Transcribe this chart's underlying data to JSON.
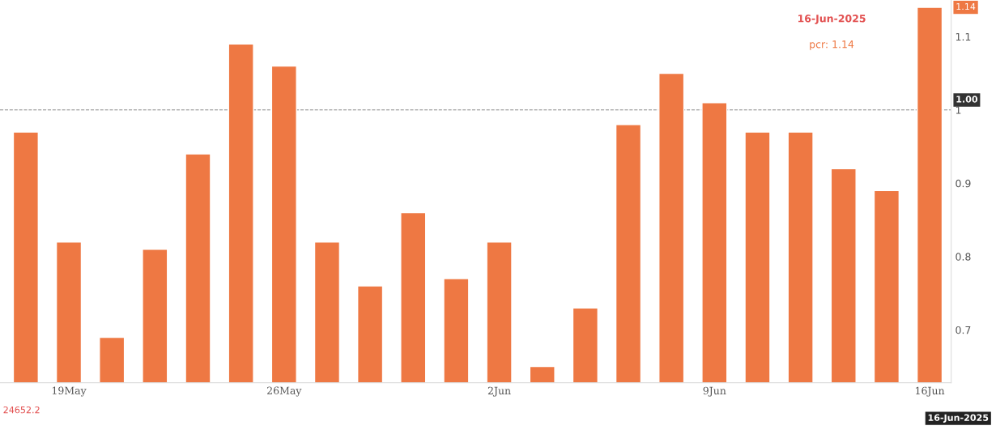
{
  "chart_data": {
    "type": "bar",
    "categories": [
      null,
      "19May",
      null,
      null,
      null,
      null,
      "26May",
      null,
      null,
      null,
      null,
      "2Jun",
      null,
      null,
      null,
      null,
      "9Jun",
      null,
      null,
      null,
      null,
      "16Jun"
    ],
    "values": [
      0.97,
      0.82,
      0.69,
      0.81,
      0.94,
      1.09,
      1.06,
      0.82,
      0.76,
      0.86,
      0.77,
      0.82,
      0.65,
      0.73,
      0.98,
      1.05,
      1.01,
      0.97,
      0.97,
      0.92,
      0.89,
      1.14
    ],
    "color": "#ee7843",
    "ylim": [
      0.628,
      1.15
    ],
    "yticks": [
      0.7,
      0.8,
      0.9,
      1,
      1.1
    ],
    "grid": false,
    "ref_lines": [
      {
        "axis": "y",
        "value": 1.0,
        "label": "1.00",
        "color": "#888888",
        "line_style": "dashed"
      }
    ],
    "annotations": [
      "16-Jun-2025",
      "pcr: 1.14",
      "24652.2",
      "16-Jun-2025",
      {
        "text": "1.14",
        "x": "16Jun",
        "y": 1.14
      }
    ]
  }
}
